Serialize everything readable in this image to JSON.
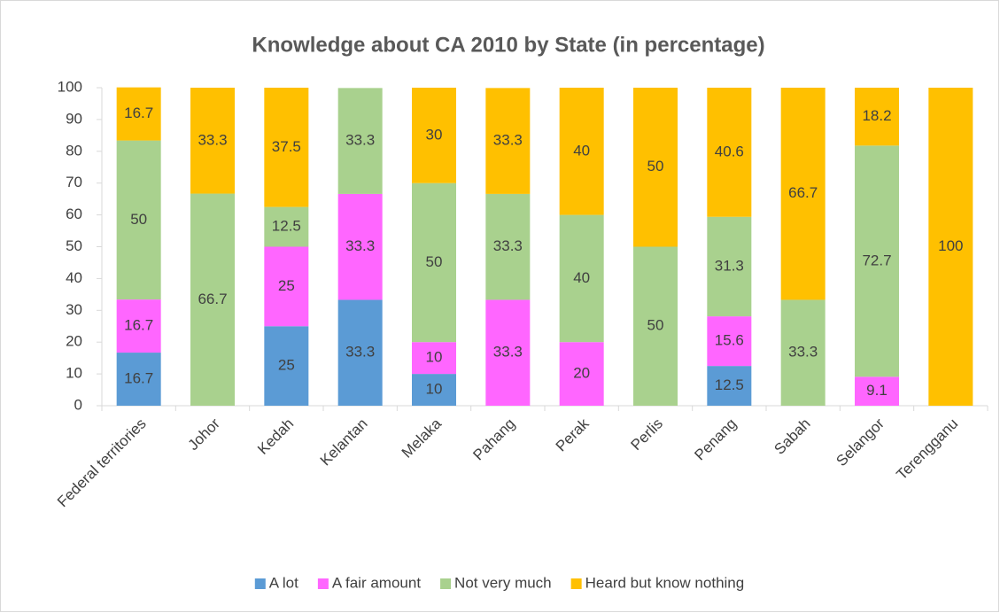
{
  "chart_data": {
    "type": "stacked_bar",
    "title": "Knowledge about CA 2010 by State (in percentage)",
    "categories": [
      "Federal territories",
      "Johor",
      "Kedah",
      "Kelantan",
      "Melaka",
      "Pahang",
      "Perak",
      "Perlis",
      "Penang",
      "Sabah",
      "Selangor",
      "Terengganu"
    ],
    "series": [
      {
        "name": "A lot",
        "color": "#5b9bd5",
        "values": [
          16.7,
          null,
          25,
          33.3,
          10,
          null,
          null,
          null,
          12.5,
          null,
          null,
          null
        ]
      },
      {
        "name": "A fair amount",
        "color": "#ff66ff",
        "values": [
          16.7,
          null,
          25,
          33.3,
          10,
          33.3,
          20,
          null,
          15.6,
          null,
          9.1,
          null
        ]
      },
      {
        "name": "Not very much",
        "color": "#a9d18e",
        "values": [
          50,
          66.7,
          12.5,
          33.3,
          50,
          33.3,
          40,
          50,
          31.3,
          33.3,
          72.7,
          null
        ]
      },
      {
        "name": "Heard but know nothing",
        "color": "#ffc000",
        "values": [
          16.7,
          33.3,
          37.5,
          null,
          30,
          33.3,
          40,
          50,
          40.6,
          66.7,
          18.2,
          100
        ]
      }
    ],
    "ylim": [
      0,
      100
    ],
    "yticks": [
      0,
      10,
      20,
      30,
      40,
      50,
      60,
      70,
      80,
      90,
      100
    ],
    "legend": "bottom"
  }
}
